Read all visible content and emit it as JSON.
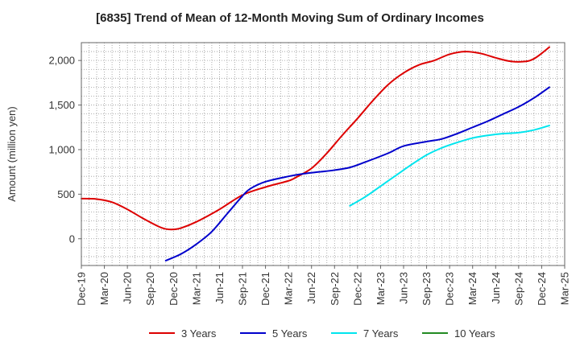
{
  "chart_data": {
    "type": "line",
    "title": "[6835]  Trend of Mean of 12-Month Moving Sum of Ordinary Incomes",
    "xlabel": "",
    "ylabel": "Amount (million yen)",
    "ylim": [
      -300,
      2200
    ],
    "yticks": [
      0,
      500,
      1000,
      1500,
      2000
    ],
    "ytick_labels": [
      "0",
      "500",
      "1,000",
      "1,500",
      "2,000"
    ],
    "xlim": [
      0,
      63
    ],
    "xticks": [
      0,
      3,
      6,
      9,
      12,
      15,
      18,
      21,
      24,
      27,
      30,
      33,
      36,
      39,
      42,
      45,
      48,
      51,
      54,
      57,
      60,
      63
    ],
    "xtick_labels": [
      "Dec-19",
      "Mar-20",
      "Jun-20",
      "Sep-20",
      "Dec-20",
      "Mar-21",
      "Jun-21",
      "Sep-21",
      "Dec-21",
      "Mar-22",
      "Jun-22",
      "Sep-22",
      "Dec-22",
      "Mar-23",
      "Jun-23",
      "Sep-23",
      "Dec-23",
      "Mar-24",
      "Jun-24",
      "Sep-24",
      "Dec-24",
      "Mar-25"
    ],
    "grid": true,
    "legend_position": "bottom",
    "series": [
      {
        "name": "3 Years",
        "color": "#dd0000",
        "points": [
          [
            0,
            450
          ],
          [
            2,
            445
          ],
          [
            4,
            410
          ],
          [
            6,
            330
          ],
          [
            8,
            230
          ],
          [
            10,
            140
          ],
          [
            11,
            110
          ],
          [
            12,
            105
          ],
          [
            13,
            120
          ],
          [
            15,
            190
          ],
          [
            18,
            330
          ],
          [
            21,
            490
          ],
          [
            24,
            580
          ],
          [
            27,
            650
          ],
          [
            28,
            690
          ],
          [
            30,
            790
          ],
          [
            32,
            960
          ],
          [
            34,
            1160
          ],
          [
            36,
            1350
          ],
          [
            38,
            1550
          ],
          [
            40,
            1730
          ],
          [
            42,
            1860
          ],
          [
            44,
            1950
          ],
          [
            46,
            2000
          ],
          [
            48,
            2070
          ],
          [
            50,
            2100
          ],
          [
            52,
            2080
          ],
          [
            54,
            2030
          ],
          [
            56,
            1990
          ],
          [
            58,
            1990
          ],
          [
            59,
            2020
          ],
          [
            60,
            2080
          ],
          [
            61,
            2150
          ]
        ]
      },
      {
        "name": "5 Years",
        "color": "#0000cc",
        "points": [
          [
            11,
            -245
          ],
          [
            13,
            -170
          ],
          [
            15,
            -60
          ],
          [
            17,
            80
          ],
          [
            19,
            280
          ],
          [
            21,
            480
          ],
          [
            22,
            560
          ],
          [
            24,
            640
          ],
          [
            27,
            700
          ],
          [
            29,
            730
          ],
          [
            31,
            750
          ],
          [
            33,
            770
          ],
          [
            35,
            800
          ],
          [
            37,
            860
          ],
          [
            40,
            960
          ],
          [
            42,
            1040
          ],
          [
            45,
            1090
          ],
          [
            47,
            1120
          ],
          [
            49,
            1180
          ],
          [
            51,
            1250
          ],
          [
            53,
            1320
          ],
          [
            55,
            1400
          ],
          [
            57,
            1480
          ],
          [
            59,
            1580
          ],
          [
            61,
            1700
          ]
        ]
      },
      {
        "name": "7 Years",
        "color": "#00e5ee",
        "points": [
          [
            35,
            370
          ],
          [
            37,
            470
          ],
          [
            39,
            590
          ],
          [
            41,
            710
          ],
          [
            43,
            830
          ],
          [
            45,
            940
          ],
          [
            47,
            1020
          ],
          [
            49,
            1080
          ],
          [
            51,
            1130
          ],
          [
            53,
            1160
          ],
          [
            55,
            1180
          ],
          [
            57,
            1190
          ],
          [
            59,
            1220
          ],
          [
            61,
            1270
          ]
        ]
      },
      {
        "name": "10 Years",
        "color": "#228b22",
        "points": []
      }
    ]
  }
}
